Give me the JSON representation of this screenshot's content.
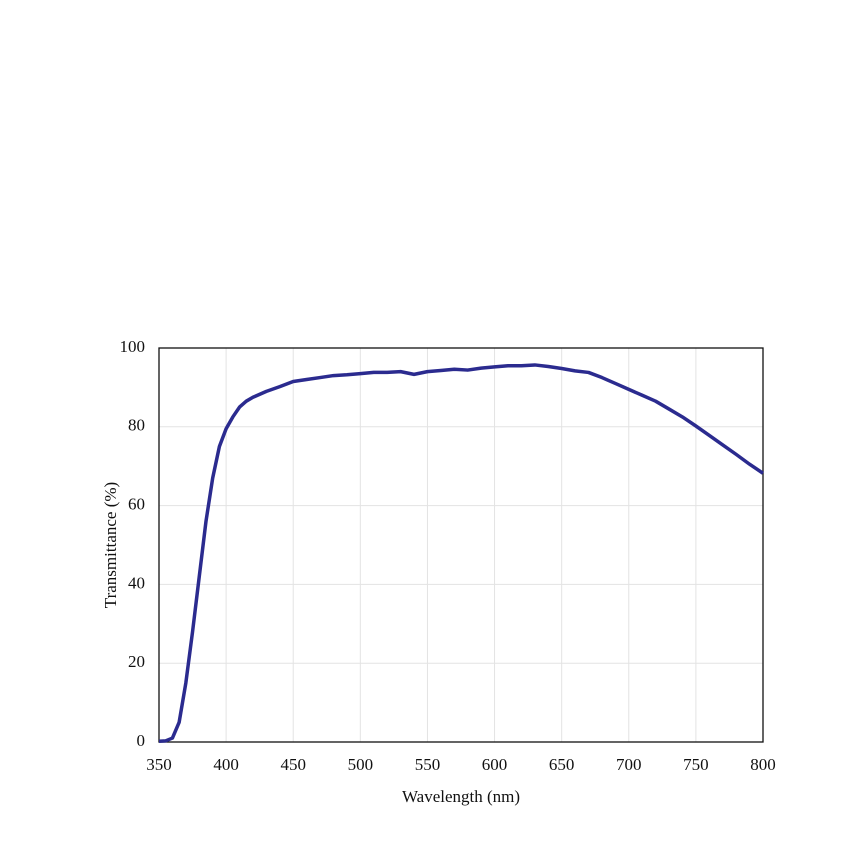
{
  "chart_data": {
    "type": "line",
    "x_label": "Wavelength (nm)",
    "y_label": "Transmittance (%)",
    "x": [
      350,
      355,
      360,
      365,
      370,
      375,
      380,
      385,
      390,
      395,
      400,
      405,
      410,
      415,
      420,
      430,
      440,
      450,
      460,
      470,
      480,
      490,
      500,
      510,
      520,
      530,
      540,
      550,
      560,
      570,
      580,
      590,
      600,
      610,
      620,
      630,
      640,
      650,
      660,
      670,
      680,
      690,
      700,
      710,
      720,
      730,
      740,
      750,
      760,
      770,
      780,
      790,
      800
    ],
    "series": [
      {
        "color": "#2b2b8f",
        "values": [
          0.2,
          0.3,
          1,
          5,
          15,
          28,
          42,
          56,
          67,
          75,
          79.5,
          82.5,
          85,
          86.5,
          87.5,
          89,
          90.2,
          91.5,
          92,
          92.5,
          93,
          93.2,
          93.5,
          93.8,
          93.8,
          94,
          93.3,
          94,
          94.3,
          94.6,
          94.4,
          94.9,
          95.2,
          95.5,
          95.5,
          95.7,
          95.3,
          94.8,
          94.2,
          93.8,
          92.5,
          91,
          89.5,
          88,
          86.5,
          84.5,
          82.5,
          80.2,
          77.8,
          75.4,
          73,
          70.5,
          68.2
        ]
      }
    ],
    "xlim": [
      350,
      800
    ],
    "ylim": [
      0,
      100
    ],
    "xticks": [
      350,
      400,
      450,
      500,
      550,
      600,
      650,
      700,
      750,
      800
    ],
    "yticks": [
      0,
      20,
      40,
      60,
      80,
      100
    ],
    "grid": true
  }
}
